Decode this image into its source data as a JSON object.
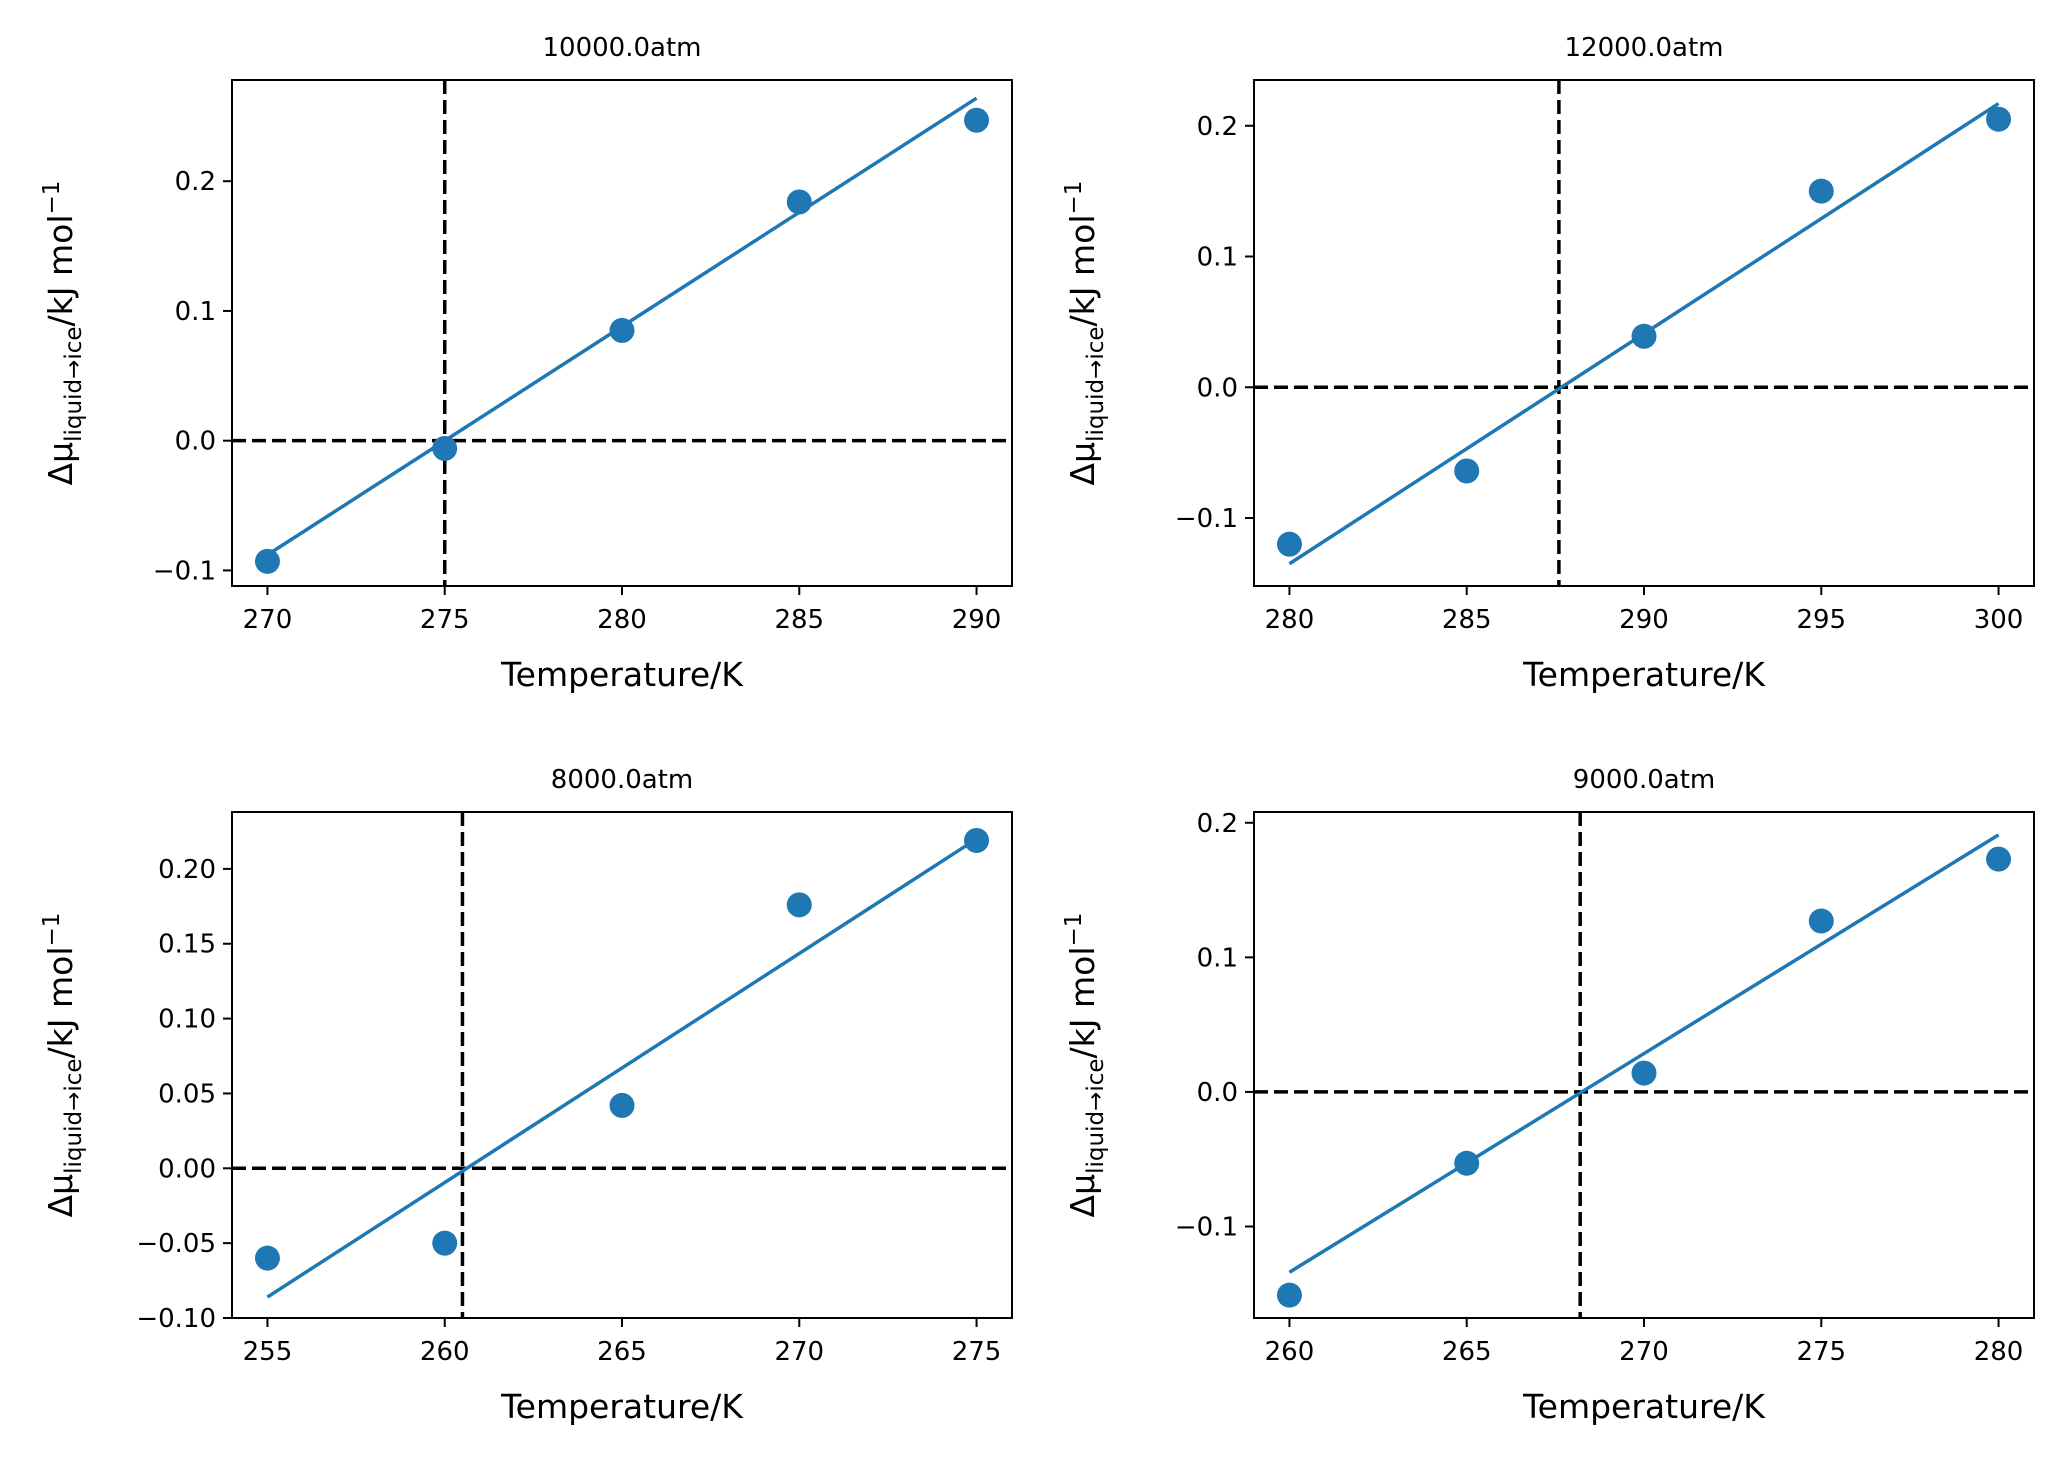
{
  "figure": {
    "ylabel": {
      "prefix": "Δμ",
      "subscript": "liquid→ice",
      "suffix": "/kJ mol",
      "superscript": "−1"
    },
    "xlabel": "Temperature/K",
    "colors": {
      "series": "#1f77b4",
      "reference": "#000000"
    }
  },
  "chart_data": [
    {
      "type": "scatter",
      "title": "10000.0atm",
      "xlabel": "Temperature/K",
      "ylabel": "Δμliquid→ice/kJ mol−1",
      "x": [
        270,
        275,
        280,
        285,
        290
      ],
      "y": [
        -0.093,
        -0.006,
        0.085,
        0.184,
        0.247
      ],
      "fit_line": {
        "x": [
          270,
          290
        ],
        "y": [
          -0.088,
          0.264
        ]
      },
      "crossing_temperature": 275.0,
      "xlim": [
        269,
        291
      ],
      "ylim": [
        -0.112,
        0.278
      ],
      "xticks": [
        270,
        275,
        280,
        285,
        290
      ],
      "xtick_labels": [
        "270",
        "275",
        "280",
        "285",
        "290"
      ],
      "yticks": [
        -0.1,
        0.0,
        0.1,
        0.2
      ],
      "ytick_labels": [
        "−0.1",
        "0.0",
        "0.1",
        "0.2"
      ],
      "grid": false
    },
    {
      "type": "scatter",
      "title": "12000.0atm",
      "xlabel": "Temperature/K",
      "ylabel": "Δμliquid→ice/kJ mol−1",
      "x": [
        280,
        285,
        290,
        295,
        300
      ],
      "y": [
        -0.12,
        -0.064,
        0.039,
        0.15,
        0.205
      ],
      "fit_line": {
        "x": [
          280,
          300
        ],
        "y": [
          -0.135,
          0.217
        ]
      },
      "crossing_temperature": 287.6,
      "xlim": [
        279,
        301
      ],
      "ylim": [
        -0.152,
        0.235
      ],
      "xticks": [
        280,
        285,
        290,
        295,
        300
      ],
      "xtick_labels": [
        "280",
        "285",
        "290",
        "295",
        "300"
      ],
      "yticks": [
        -0.1,
        0.0,
        0.1,
        0.2
      ],
      "ytick_labels": [
        "−0.1",
        "0.0",
        "0.1",
        "0.2"
      ],
      "grid": false
    },
    {
      "type": "scatter",
      "title": "8000.0atm",
      "xlabel": "Temperature/K",
      "ylabel": "Δμliquid→ice/kJ mol−1",
      "x": [
        255,
        260,
        265,
        270,
        275
      ],
      "y": [
        -0.06,
        -0.05,
        0.042,
        0.176,
        0.219
      ],
      "fit_line": {
        "x": [
          255,
          275
        ],
        "y": [
          -0.086,
          0.22
        ]
      },
      "crossing_temperature": 260.5,
      "xlim": [
        254,
        276
      ],
      "ylim": [
        -0.1,
        0.238
      ],
      "xticks": [
        255,
        260,
        265,
        270,
        275
      ],
      "xtick_labels": [
        "255",
        "260",
        "265",
        "270",
        "275"
      ],
      "yticks": [
        -0.1,
        -0.05,
        0.0,
        0.05,
        0.1,
        0.15,
        0.2
      ],
      "ytick_labels": [
        "−0.10",
        "−0.05",
        "0.00",
        "0.05",
        "0.10",
        "0.15",
        "0.20"
      ],
      "grid": false
    },
    {
      "type": "scatter",
      "title": "9000.0atm",
      "xlabel": "Temperature/K",
      "ylabel": "Δμliquid→ice/kJ mol−1",
      "x": [
        260,
        265,
        270,
        275,
        280
      ],
      "y": [
        -0.151,
        -0.053,
        0.014,
        0.127,
        0.173
      ],
      "fit_line": {
        "x": [
          260,
          280
        ],
        "y": [
          -0.134,
          0.191
        ]
      },
      "crossing_temperature": 268.2,
      "xlim": [
        259,
        281
      ],
      "ylim": [
        -0.168,
        0.208
      ],
      "xticks": [
        260,
        265,
        270,
        275,
        280
      ],
      "xtick_labels": [
        "260",
        "265",
        "270",
        "275",
        "280"
      ],
      "yticks": [
        -0.1,
        0.0,
        0.1,
        0.2
      ],
      "ytick_labels": [
        "−0.1",
        "0.0",
        "0.1",
        "0.2"
      ],
      "grid": false
    }
  ]
}
